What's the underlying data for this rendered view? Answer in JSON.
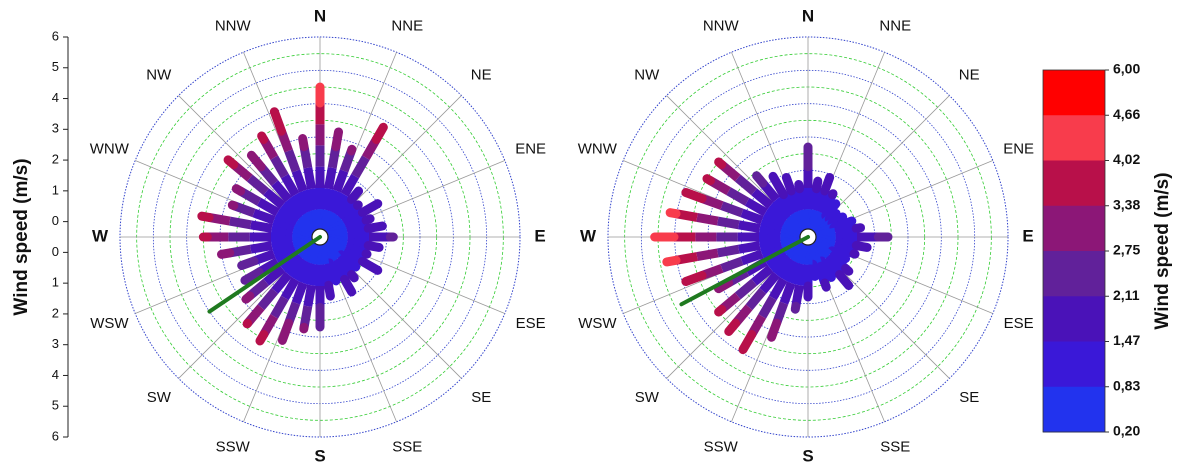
{
  "chart_data": {
    "type": "wind-rose",
    "ylabel": "Wind speed (m/s)",
    "radial_ticks": [
      "6",
      "5",
      "4",
      "3",
      "2",
      "1",
      "0",
      "0",
      "1",
      "2",
      "3",
      "4",
      "5",
      "6"
    ],
    "radial_max": 6,
    "directions": [
      "N",
      "NNE",
      "NE",
      "ENE",
      "E",
      "ESE",
      "SE",
      "SSE",
      "S",
      "SSW",
      "SW",
      "WSW",
      "W",
      "WNW",
      "NW",
      "NNW"
    ],
    "colorbar": {
      "label": "Wind speed (m/s)",
      "ticks": [
        "6,00",
        "4,66",
        "4,02",
        "3,38",
        "2,75",
        "2,11",
        "1,47",
        "0,83",
        "0,20"
      ],
      "colors": [
        "#ff0000",
        "#f83c4c",
        "#b8104a",
        "#8c1777",
        "#61219a",
        "#4a12b8",
        "#3a18d8",
        "#2233ee",
        "#0a5cff"
      ]
    },
    "panels": [
      {
        "name": "left",
        "dominant_direction_deg": 236,
        "dominant_line_length": 4.0,
        "dominant_color": "#1f7a1f",
        "spokes": [
          [
            0,
            4.5
          ],
          [
            10,
            3.2
          ],
          [
            20,
            2.8
          ],
          [
            30,
            3.8
          ],
          [
            40,
            1.8
          ],
          [
            50,
            1.5
          ],
          [
            60,
            2.0
          ],
          [
            70,
            1.6
          ],
          [
            80,
            1.9
          ],
          [
            90,
            2.2
          ],
          [
            100,
            1.8
          ],
          [
            110,
            1.5
          ],
          [
            120,
            2.0
          ],
          [
            130,
            1.4
          ],
          [
            140,
            1.6
          ],
          [
            150,
            1.9
          ],
          [
            160,
            1.4
          ],
          [
            170,
            1.8
          ],
          [
            180,
            2.7
          ],
          [
            190,
            2.8
          ],
          [
            200,
            3.3
          ],
          [
            210,
            3.6
          ],
          [
            220,
            3.4
          ],
          [
            230,
            2.9
          ],
          [
            240,
            2.6
          ],
          [
            250,
            2.5
          ],
          [
            260,
            3.0
          ],
          [
            270,
            3.5
          ],
          [
            280,
            3.6
          ],
          [
            290,
            2.8
          ],
          [
            300,
            2.9
          ],
          [
            310,
            3.6
          ],
          [
            320,
            3.2
          ],
          [
            330,
            3.5
          ],
          [
            340,
            4.0
          ],
          [
            350,
            3.0
          ]
        ]
      },
      {
        "name": "right",
        "dominant_direction_deg": 242,
        "dominant_line_length": 4.3,
        "dominant_color": "#1f7a1f",
        "spokes": [
          [
            0,
            2.7
          ],
          [
            10,
            1.7
          ],
          [
            20,
            1.9
          ],
          [
            30,
            1.5
          ],
          [
            40,
            1.3
          ],
          [
            50,
            1.1
          ],
          [
            60,
            1.2
          ],
          [
            70,
            1.4
          ],
          [
            80,
            1.6
          ],
          [
            90,
            2.4
          ],
          [
            100,
            1.8
          ],
          [
            110,
            1.5
          ],
          [
            120,
            1.3
          ],
          [
            130,
            1.6
          ],
          [
            140,
            1.9
          ],
          [
            150,
            1.4
          ],
          [
            160,
            1.6
          ],
          [
            170,
            1.2
          ],
          [
            180,
            1.8
          ],
          [
            190,
            2.2
          ],
          [
            200,
            3.2
          ],
          [
            210,
            3.9
          ],
          [
            220,
            3.7
          ],
          [
            230,
            3.5
          ],
          [
            240,
            3.1
          ],
          [
            250,
            3.9
          ],
          [
            260,
            4.3
          ],
          [
            270,
            4.6
          ],
          [
            280,
            4.2
          ],
          [
            290,
            3.9
          ],
          [
            300,
            3.5
          ],
          [
            310,
            3.5
          ],
          [
            320,
            2.4
          ],
          [
            330,
            2.1
          ],
          [
            340,
            1.9
          ],
          [
            350,
            1.6
          ]
        ]
      }
    ]
  }
}
